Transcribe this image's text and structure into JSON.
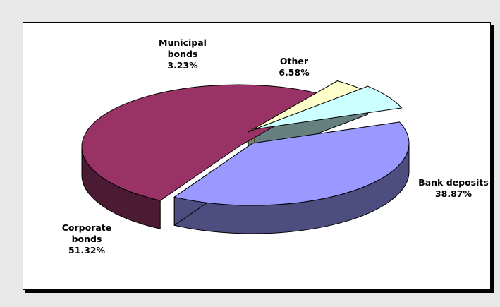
{
  "chart_data": {
    "type": "pie",
    "title": "",
    "slices": [
      {
        "label_lines": [
          "Bank deposits",
          "38.87%"
        ],
        "value": 38.87,
        "color": "#9999ff",
        "side_color": "#4d4d80"
      },
      {
        "label_lines": [
          "Corporate",
          "bonds",
          "51.32%"
        ],
        "value": 51.32,
        "color": "#993366",
        "side_color": "#4d1a33"
      },
      {
        "label_lines": [
          "Municipal",
          "bonds",
          "3.23%"
        ],
        "value": 3.23,
        "color": "#ffffcc",
        "side_color": "#808066"
      },
      {
        "label_lines": [
          "Other",
          "6.58%"
        ],
        "value": 6.58,
        "color": "#ccffff",
        "side_color": "#668080"
      }
    ],
    "legend": "none",
    "exploded": true,
    "three_d": true
  }
}
